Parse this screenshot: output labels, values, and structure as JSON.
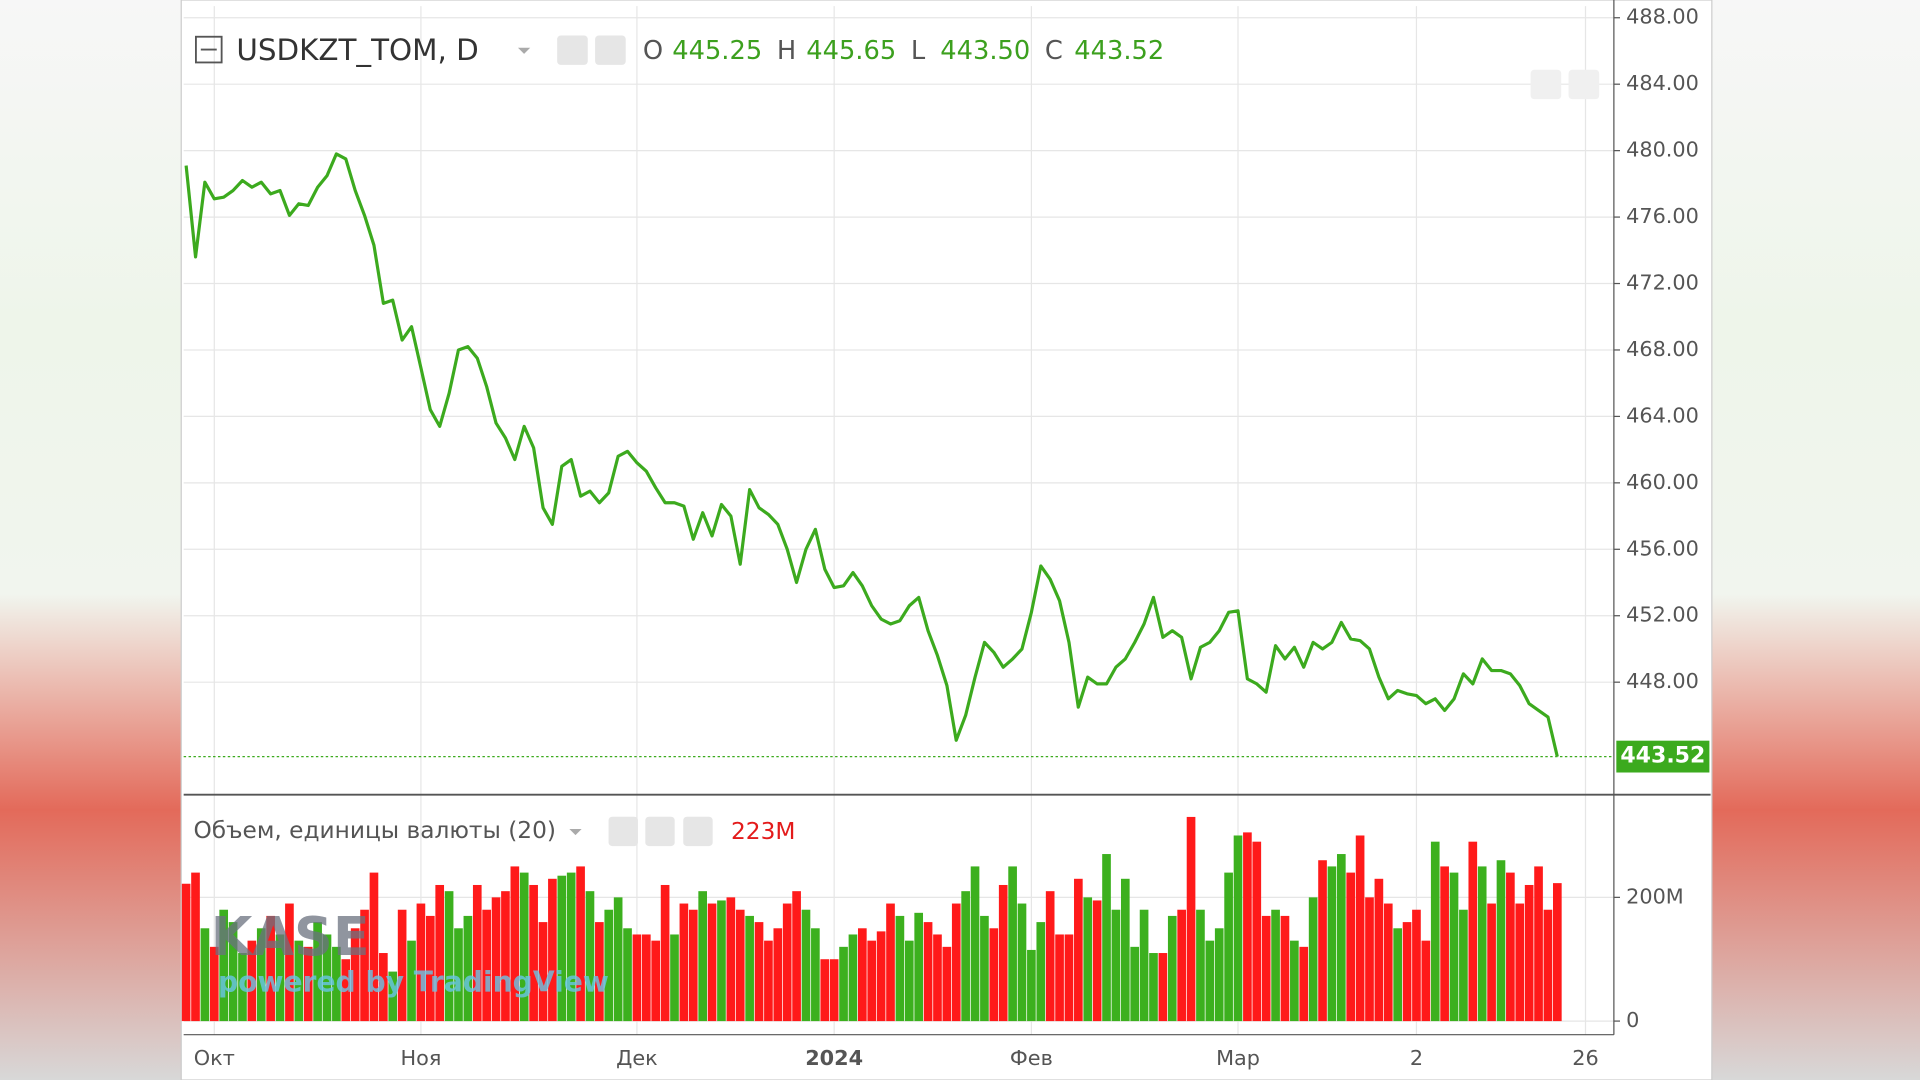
{
  "chart_data": [
    {
      "type": "line",
      "title": "USDKZT_TOM, D",
      "ohlc": [
        {
          "label": "O",
          "value": "445.25"
        },
        {
          "label": "H",
          "value": "445.65"
        },
        {
          "label": "L",
          "value": "443.50"
        },
        {
          "label": "C",
          "value": "443.52"
        }
      ],
      "categories": [
        null,
        null,
        null,
        "Окт",
        null,
        null,
        null,
        null,
        null,
        null,
        null,
        null,
        null,
        null,
        null,
        null,
        null,
        null,
        null,
        null,
        null,
        null,
        null,
        null,
        null,
        "Ноя",
        null,
        null,
        null,
        null,
        null,
        null,
        null,
        null,
        null,
        null,
        null,
        null,
        null,
        null,
        null,
        null,
        null,
        null,
        null,
        null,
        null,
        null,
        "Дек",
        null,
        null,
        null,
        null,
        null,
        null,
        null,
        null,
        null,
        null,
        null,
        null,
        null,
        null,
        null,
        null,
        null,
        null,
        null,
        null,
        "2024",
        null,
        null,
        null,
        null,
        null,
        null,
        null,
        null,
        null,
        null,
        null,
        null,
        null,
        null,
        null,
        null,
        null,
        null,
        null,
        null,
        "Фев",
        null,
        null,
        null,
        null,
        null,
        null,
        null,
        null,
        null,
        null,
        null,
        null,
        null,
        null,
        null,
        null,
        null,
        null,
        null,
        null,
        null,
        "Мар",
        null,
        null,
        null,
        null,
        null,
        null,
        null,
        null,
        null,
        null,
        null,
        null,
        null,
        null,
        null,
        null,
        null,
        null,
        "2",
        null,
        null,
        null,
        null,
        null,
        null,
        null,
        null,
        null,
        null,
        null,
        null,
        null,
        null,
        null,
        null,
        null,
        "26"
      ],
      "values": [
        479.1,
        473.6,
        478.1,
        477.1,
        477.2,
        477.6,
        478.2,
        477.8,
        478.1,
        477.4,
        477.6,
        476.1,
        476.8,
        476.7,
        477.8,
        478.5,
        479.8,
        479.5,
        477.6,
        476.1,
        474.3,
        470.8,
        471.0,
        468.6,
        469.4,
        466.9,
        464.4,
        463.4,
        465.4,
        468.0,
        468.2,
        467.5,
        465.8,
        463.6,
        462.7,
        461.4,
        463.4,
        462.1,
        458.5,
        457.5,
        461.0,
        461.4,
        459.2,
        459.5,
        458.8,
        459.4,
        461.6,
        461.9,
        461.2,
        460.7,
        459.7,
        458.8,
        458.8,
        458.6,
        456.6,
        458.2,
        456.8,
        458.7,
        458.0,
        455.1,
        459.6,
        458.5,
        458.1,
        457.5,
        456.0,
        454.0,
        456.0,
        457.2,
        454.8,
        453.7,
        453.8,
        454.6,
        453.8,
        452.6,
        451.8,
        451.5,
        451.7,
        452.6,
        453.1,
        451.1,
        449.6,
        447.8,
        444.5,
        446.0,
        448.3,
        450.4,
        449.8,
        448.9,
        449.4,
        450.0,
        452.2,
        455.0,
        454.2,
        452.9,
        450.4,
        446.5,
        448.3,
        447.9,
        447.9,
        448.9,
        449.4,
        450.4,
        451.5,
        453.1,
        450.7,
        451.1,
        450.7,
        448.2,
        450.1,
        450.4,
        451.1,
        452.2,
        452.3,
        448.2,
        447.9,
        447.4,
        450.2,
        449.4,
        450.1,
        448.9,
        450.4,
        450.0,
        450.4,
        451.6,
        450.6,
        450.5,
        450.0,
        448.3,
        447.0,
        447.5,
        447.3,
        447.2,
        446.7,
        447.0,
        446.3,
        447.0,
        448.5,
        447.9,
        449.4,
        448.7,
        448.7,
        448.5,
        447.8,
        446.7,
        446.3,
        445.9,
        443.52,
        null,
        null,
        null
      ],
      "color": "#3caa1e",
      "ylim": [
        441.3,
        488.7
      ],
      "yticks": [
        {
          "value": 488,
          "label": "488.00"
        },
        {
          "value": 484,
          "label": "484.00"
        },
        {
          "value": 480,
          "label": "480.00"
        },
        {
          "value": 476,
          "label": "476.00"
        },
        {
          "value": 472,
          "label": "472.00"
        },
        {
          "value": 468,
          "label": "468.00"
        },
        {
          "value": 464,
          "label": "464.00"
        },
        {
          "value": 460,
          "label": "460.00"
        },
        {
          "value": 456,
          "label": "456.00"
        },
        {
          "value": 452,
          "label": "452.00"
        },
        {
          "value": 448,
          "label": "448.00"
        }
      ],
      "grid": true,
      "watermark": {
        "logo": "KASE",
        "text": "powered by TradingView"
      }
    },
    {
      "type": "bar",
      "title": "Объем, единицы валюты (20)",
      "legend_value": "223M",
      "values": [
        222,
        240,
        150,
        120,
        180,
        160,
        110,
        130,
        150,
        170,
        140,
        190,
        130,
        120,
        160,
        140,
        120,
        100,
        150,
        180,
        240,
        110,
        80,
        180,
        130,
        190,
        170,
        220,
        210,
        150,
        170,
        220,
        180,
        200,
        210,
        250,
        240,
        220,
        160,
        230,
        235,
        240,
        250,
        210,
        160,
        180,
        200,
        150,
        140,
        140,
        130,
        220,
        140,
        190,
        180,
        210,
        190,
        195,
        200,
        180,
        170,
        160,
        130,
        150,
        190,
        210,
        180,
        150,
        100,
        100,
        120,
        140,
        150,
        130,
        145,
        190,
        170,
        130,
        175,
        160,
        140,
        120,
        190,
        210,
        250,
        170,
        150,
        220,
        250,
        190,
        115,
        160,
        210,
        140,
        140,
        230,
        200,
        195,
        270,
        180,
        230,
        120,
        180,
        110,
        110,
        170,
        180,
        330,
        180,
        130,
        150,
        240,
        300,
        305,
        290,
        170,
        180,
        170,
        130,
        120,
        200,
        260,
        250,
        270,
        240,
        300,
        200,
        230,
        190,
        150,
        160,
        180,
        130,
        290,
        250,
        240,
        180,
        290,
        250,
        190,
        260,
        240,
        190,
        220,
        250,
        180,
        223,
        null,
        null,
        null
      ],
      "up_color": "#3cb01e",
      "down_color": "#ff1a1a",
      "ylim": [
        -22,
        360
      ],
      "yticks": [
        0,
        {
          "value": 200,
          "label": "200M"
        }
      ]
    }
  ]
}
